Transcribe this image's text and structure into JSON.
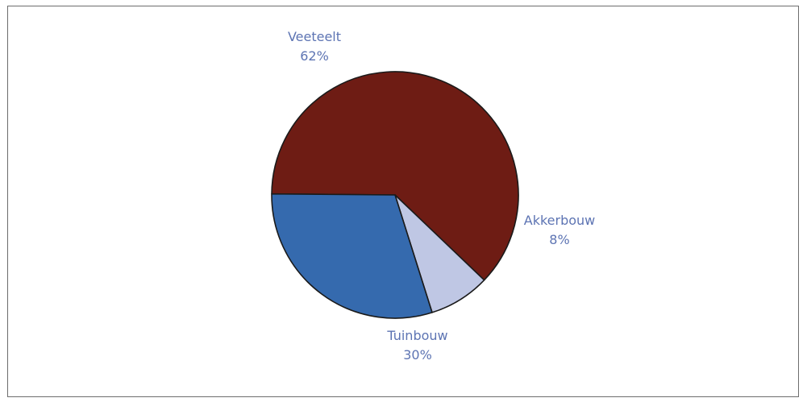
{
  "chart_data": {
    "type": "pie",
    "title": "",
    "slices": [
      {
        "name": "Veeteelt",
        "value": 62,
        "value_label": "62%",
        "color": "#6e1c14"
      },
      {
        "name": "Akkerbouw",
        "value": 8,
        "value_label": "8%",
        "color": "#bfc7e4"
      },
      {
        "name": "Tuinbouw",
        "value": 30,
        "value_label": "30%",
        "color": "#356aae"
      }
    ],
    "legend": "none",
    "labels": "outside"
  }
}
